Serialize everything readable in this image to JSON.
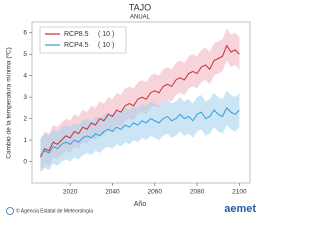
{
  "chart_data": {
    "type": "band-line",
    "title": "TAJO",
    "subtitle": "ANUAL",
    "y_label": "Cambio de la temperatura mínima (ºC)",
    "x_label": "Año",
    "x": [
      2006,
      2008,
      2010,
      2012,
      2014,
      2016,
      2018,
      2020,
      2022,
      2024,
      2026,
      2028,
      2030,
      2032,
      2034,
      2036,
      2038,
      2040,
      2042,
      2044,
      2046,
      2048,
      2050,
      2052,
      2054,
      2056,
      2058,
      2060,
      2062,
      2064,
      2066,
      2068,
      2070,
      2072,
      2074,
      2076,
      2078,
      2080,
      2082,
      2084,
      2086,
      2088,
      2090,
      2092,
      2094,
      2096,
      2098,
      2100
    ],
    "series": [
      {
        "name": "RCP8.5",
        "count_label": "( 10 )",
        "color": "#c8302c",
        "band_color": "#f2b8bf",
        "values": [
          0.2,
          0.6,
          0.5,
          0.9,
          0.8,
          1.0,
          1.2,
          1.1,
          1.4,
          1.3,
          1.6,
          1.5,
          1.8,
          1.7,
          2.0,
          1.9,
          2.2,
          2.1,
          2.4,
          2.3,
          2.6,
          2.7,
          2.6,
          2.9,
          3.0,
          2.9,
          3.2,
          3.3,
          3.2,
          3.5,
          3.6,
          3.5,
          3.8,
          3.9,
          3.8,
          4.1,
          4.2,
          4.1,
          4.4,
          4.5,
          4.3,
          4.7,
          4.8,
          4.9,
          5.4,
          5.1,
          5.2,
          5.0
        ],
        "upper": [
          1.0,
          1.4,
          1.3,
          1.7,
          1.6,
          1.8,
          2.0,
          1.9,
          2.2,
          2.1,
          2.4,
          2.3,
          2.6,
          2.5,
          2.8,
          2.7,
          3.0,
          2.9,
          3.2,
          3.1,
          3.4,
          3.5,
          3.4,
          3.7,
          3.8,
          3.7,
          4.0,
          4.1,
          4.0,
          4.3,
          4.4,
          4.3,
          4.6,
          4.7,
          4.6,
          4.9,
          5.0,
          4.9,
          5.2,
          5.3,
          5.1,
          5.5,
          5.6,
          5.7,
          6.2,
          5.9,
          6.0,
          5.8
        ],
        "lower": [
          -0.5,
          -0.1,
          -0.2,
          0.2,
          0.1,
          0.3,
          0.5,
          0.4,
          0.7,
          0.6,
          0.9,
          0.8,
          1.1,
          1.0,
          1.3,
          1.2,
          1.5,
          1.4,
          1.7,
          1.6,
          1.9,
          2.0,
          1.9,
          2.2,
          2.3,
          2.2,
          2.5,
          2.6,
          2.5,
          2.8,
          2.9,
          2.8,
          3.1,
          3.2,
          3.1,
          3.4,
          3.5,
          3.4,
          3.7,
          3.8,
          3.6,
          4.0,
          4.1,
          4.2,
          4.7,
          4.4,
          4.5,
          4.3
        ]
      },
      {
        "name": "RCP4.5",
        "count_label": "( 10 )",
        "color": "#3a9ad9",
        "band_color": "#a9d3ee",
        "values": [
          0.3,
          0.5,
          0.4,
          0.7,
          0.6,
          0.8,
          0.9,
          0.8,
          1.0,
          0.9,
          1.1,
          1.2,
          1.1,
          1.3,
          1.2,
          1.4,
          1.5,
          1.4,
          1.6,
          1.5,
          1.7,
          1.6,
          1.8,
          1.7,
          1.9,
          1.8,
          2.0,
          1.9,
          1.8,
          2.0,
          2.1,
          1.9,
          2.0,
          2.2,
          2.0,
          2.1,
          1.9,
          2.2,
          2.3,
          2.0,
          2.1,
          2.4,
          2.2,
          2.1,
          2.5,
          2.3,
          2.2,
          2.4
        ],
        "upper": [
          1.1,
          1.3,
          1.2,
          1.5,
          1.4,
          1.6,
          1.7,
          1.6,
          1.8,
          1.7,
          1.9,
          2.0,
          1.9,
          2.1,
          2.0,
          2.2,
          2.3,
          2.2,
          2.4,
          2.3,
          2.5,
          2.4,
          2.6,
          2.5,
          2.7,
          2.6,
          2.8,
          2.7,
          2.6,
          2.8,
          2.9,
          2.7,
          2.8,
          3.0,
          2.8,
          2.9,
          2.7,
          3.0,
          3.1,
          2.8,
          2.9,
          3.2,
          3.0,
          2.9,
          3.3,
          3.1,
          3.0,
          3.2
        ],
        "lower": [
          -0.5,
          -0.3,
          -0.4,
          -0.1,
          -0.2,
          0.0,
          0.1,
          0.0,
          0.2,
          0.1,
          0.3,
          0.4,
          0.3,
          0.5,
          0.4,
          0.6,
          0.7,
          0.6,
          0.8,
          0.7,
          0.9,
          0.8,
          1.0,
          0.9,
          1.1,
          1.0,
          1.2,
          1.1,
          1.0,
          1.2,
          1.3,
          1.1,
          1.2,
          1.4,
          1.2,
          1.3,
          1.1,
          1.4,
          1.5,
          1.2,
          1.3,
          1.6,
          1.4,
          1.3,
          1.7,
          1.5,
          1.4,
          1.6
        ]
      }
    ],
    "xlim": [
      2002,
      2105
    ],
    "xticks": [
      2020,
      2040,
      2060,
      2080,
      2100
    ],
    "ylim": [
      -1,
      6.5
    ],
    "yticks": [
      0,
      1,
      2,
      3,
      4,
      5,
      6
    ],
    "legend": "upper-left",
    "footer": "© Agencia Estatal de Meteorología",
    "logo": "aemet"
  }
}
